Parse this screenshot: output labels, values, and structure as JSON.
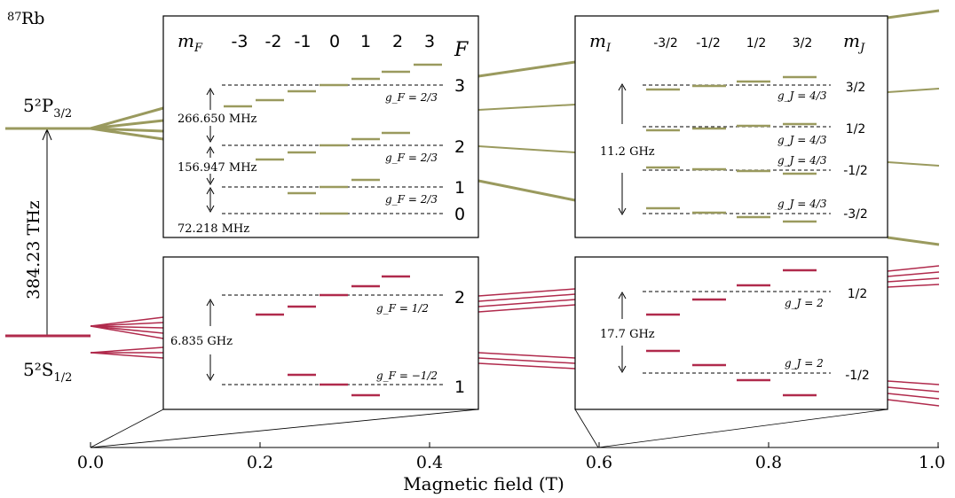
{
  "colors": {
    "excited": "#9a9a5e",
    "ground": "#b02a4c",
    "axis": "#000000",
    "dashed": "#000000",
    "box_border": "#000000"
  },
  "labels": {
    "isotope_mass": "87",
    "isotope_symbol": "Rb",
    "p_state": "5²P",
    "p_state_sub": "3/2",
    "s_state": "5²S",
    "s_state_sub": "1/2",
    "optical_frequency": "384.23 THz"
  },
  "axis": {
    "xlabel": "Magnetic field (T)",
    "ticks": [
      "0.0",
      "0.2",
      "0.4",
      "0.6",
      "0.8",
      "1.0"
    ]
  },
  "box_hf_excited": {
    "header_mF": "m",
    "header_mF_sub": "F",
    "mF_values": [
      "-3",
      "-2",
      "-1",
      "0",
      "1",
      "2",
      "3"
    ],
    "header_F": "F",
    "F_values": [
      "3",
      "2",
      "1",
      "0"
    ],
    "splittings": [
      "266.650 MHz",
      "156.947 MHz",
      "72.218 MHz"
    ],
    "g_factors": [
      "g_F = 2/3",
      "g_F = 2/3",
      "g_F = 2/3"
    ]
  },
  "box_hf_ground": {
    "F_values": [
      "2",
      "1"
    ],
    "splitting": "6.835 GHz",
    "g_factors": [
      "g_F = 1/2",
      "g_F = −1/2"
    ]
  },
  "box_pb_excited": {
    "header_mI": "m",
    "header_mI_sub": "I",
    "mI_values": [
      "-3/2",
      "-1/2",
      "1/2",
      "3/2"
    ],
    "header_mJ": "m",
    "header_mJ_sub": "J",
    "mJ_values": [
      "3/2",
      "1/2",
      "-1/2",
      "-3/2"
    ],
    "splitting": "11.2 GHz",
    "g_factors": [
      "g_J = 4/3",
      "g_J = 4/3",
      "g_J = 4/3",
      "g_J = 4/3"
    ]
  },
  "box_pb_ground": {
    "mJ_values": [
      "1/2",
      "-1/2"
    ],
    "splitting": "17.7 GHz",
    "g_factors": [
      "g_J = 2",
      "g_J = 2"
    ]
  }
}
